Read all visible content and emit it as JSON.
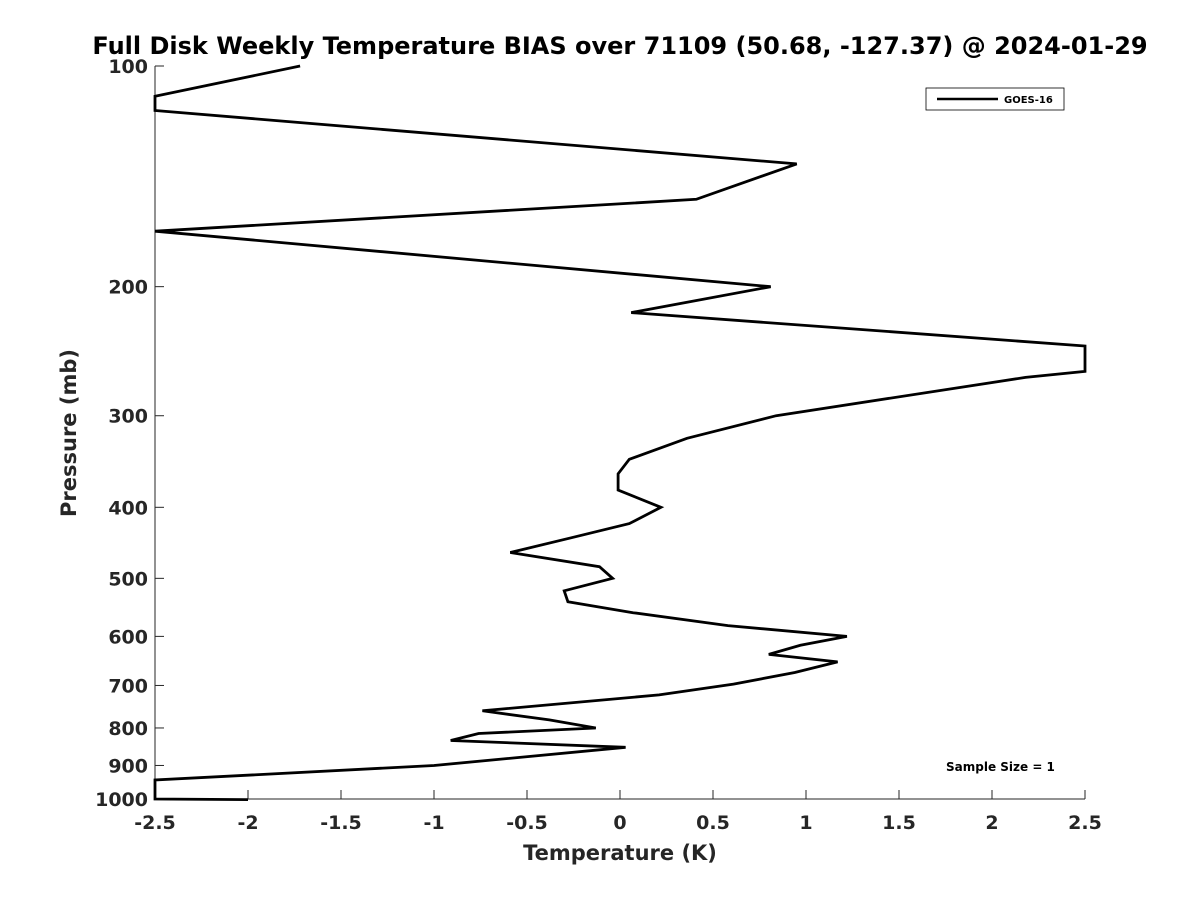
{
  "chart_data": {
    "type": "line",
    "title": "Full Disk Weekly Temperature BIAS over 71109 (50.68, -127.37) @ 2024-01-29",
    "xlabel": "Temperature (K)",
    "ylabel": "Pressure (mb)",
    "xlim": [
      -2.5,
      2.5
    ],
    "ylim": [
      100,
      1000
    ],
    "y_scale": "log",
    "y_reversed": true,
    "grid": false,
    "legend_position": "top-right",
    "x_ticks": [
      -2.5,
      -2,
      -1.5,
      -1,
      -0.5,
      0,
      0.5,
      1,
      1.5,
      2,
      2.5
    ],
    "x_tick_labels": [
      "-2.5",
      "-2",
      "-1.5",
      "-1",
      "-0.5",
      "0",
      "0.5",
      "1",
      "1.5",
      "2",
      "2.5"
    ],
    "y_ticks": [
      100,
      200,
      300,
      400,
      500,
      600,
      700,
      800,
      900,
      1000
    ],
    "y_tick_labels": [
      "100",
      "200",
      "300",
      "400",
      "500",
      "600",
      "700",
      "800",
      "900",
      "1000"
    ],
    "annotation": "Sample Size = 1",
    "series": [
      {
        "name": "GOES-16",
        "color": "#000000",
        "points": [
          {
            "x": -1.72,
            "p": 100
          },
          {
            "x": -2.5,
            "p": 110
          },
          {
            "x": -2.5,
            "p": 115
          },
          {
            "x": 0.95,
            "p": 136
          },
          {
            "x": 0.41,
            "p": 152
          },
          {
            "x": -2.5,
            "p": 168
          },
          {
            "x": 0.81,
            "p": 200
          },
          {
            "x": 0.06,
            "p": 217
          },
          {
            "x": 2.5,
            "p": 241
          },
          {
            "x": 2.5,
            "p": 261
          },
          {
            "x": 2.18,
            "p": 266
          },
          {
            "x": 0.84,
            "p": 300
          },
          {
            "x": 0.36,
            "p": 322
          },
          {
            "x": 0.05,
            "p": 344
          },
          {
            "x": -0.01,
            "p": 360
          },
          {
            "x": -0.01,
            "p": 379
          },
          {
            "x": 0.22,
            "p": 400
          },
          {
            "x": 0.05,
            "p": 421
          },
          {
            "x": -0.26,
            "p": 440
          },
          {
            "x": -0.59,
            "p": 461
          },
          {
            "x": -0.11,
            "p": 482
          },
          {
            "x": -0.04,
            "p": 500
          },
          {
            "x": -0.3,
            "p": 520
          },
          {
            "x": -0.28,
            "p": 538
          },
          {
            "x": 0.07,
            "p": 557
          },
          {
            "x": 0.58,
            "p": 580
          },
          {
            "x": 1.22,
            "p": 600
          },
          {
            "x": 0.97,
            "p": 617
          },
          {
            "x": 0.8,
            "p": 635
          },
          {
            "x": 1.17,
            "p": 650
          },
          {
            "x": 0.94,
            "p": 672
          },
          {
            "x": 0.61,
            "p": 697
          },
          {
            "x": 0.21,
            "p": 721
          },
          {
            "x": -0.74,
            "p": 758
          },
          {
            "x": -0.38,
            "p": 780
          },
          {
            "x": -0.13,
            "p": 800
          },
          {
            "x": -0.76,
            "p": 814
          },
          {
            "x": -0.91,
            "p": 832
          },
          {
            "x": 0.03,
            "p": 850
          },
          {
            "x": -1.0,
            "p": 900
          },
          {
            "x": -2.5,
            "p": 942
          },
          {
            "x": -2.5,
            "p": 1000
          },
          {
            "x": -2.0,
            "p": 1002
          }
        ]
      }
    ]
  }
}
